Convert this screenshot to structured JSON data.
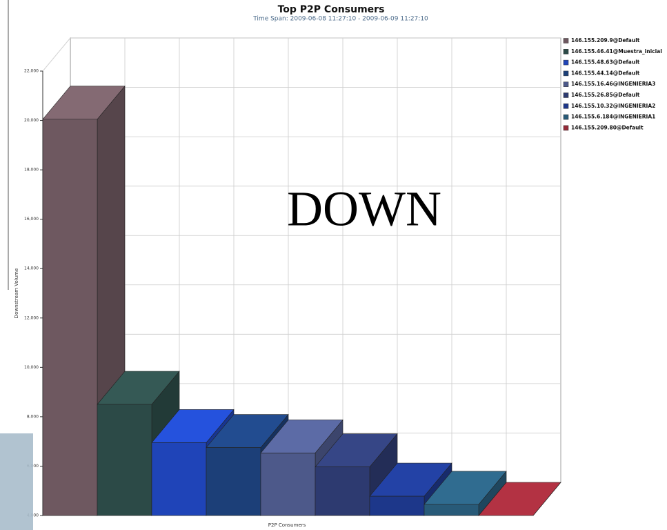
{
  "chart_data": {
    "type": "bar3d",
    "title": "Top P2P Consumers",
    "subtitle": "Time Span: 2009-06-08 11:27:10 - 2009-06-09 11:27:10",
    "y_label": "Downstream Volume",
    "x_label": "P2P Consumers",
    "annotation": "DOWN",
    "categories": [
      "146.155.209.9@Default",
      "146.155.46.41@Muestra_inicial",
      "146.155.48.63@Default",
      "146.155.44.14@Default",
      "146.155.16.46@INGENIERIA3",
      "146.155.26.85@Default",
      "146.155.10.32@INGENIERIA2",
      "146.155.6.184@INGENIERIA1",
      "146.155.209.80@Default"
    ],
    "values": [
      20050,
      8500,
      6950,
      6750,
      6530,
      5970,
      4780,
      4450,
      4000
    ],
    "colors": [
      "#6e5860",
      "#2c4a47",
      "#1f44b8",
      "#1c3f78",
      "#4d598a",
      "#2d3a70",
      "#1d378a",
      "#285a78",
      "#952a38"
    ],
    "ylim": [
      4000,
      22000
    ],
    "yticks": [
      {
        "value": 4000,
        "label": "4,000"
      },
      {
        "value": 6000,
        "label": "6,000"
      },
      {
        "value": 8000,
        "label": "8,000"
      },
      {
        "value": 10000,
        "label": "10,000"
      },
      {
        "value": 12000,
        "label": "12,000"
      },
      {
        "value": 14000,
        "label": "14,000"
      },
      {
        "value": 16000,
        "label": "16,000"
      },
      {
        "value": 18000,
        "label": "18,000"
      },
      {
        "value": 20000,
        "label": "20,000"
      },
      {
        "value": 22000,
        "label": "22,000"
      }
    ],
    "grid": true,
    "legend": "right"
  }
}
